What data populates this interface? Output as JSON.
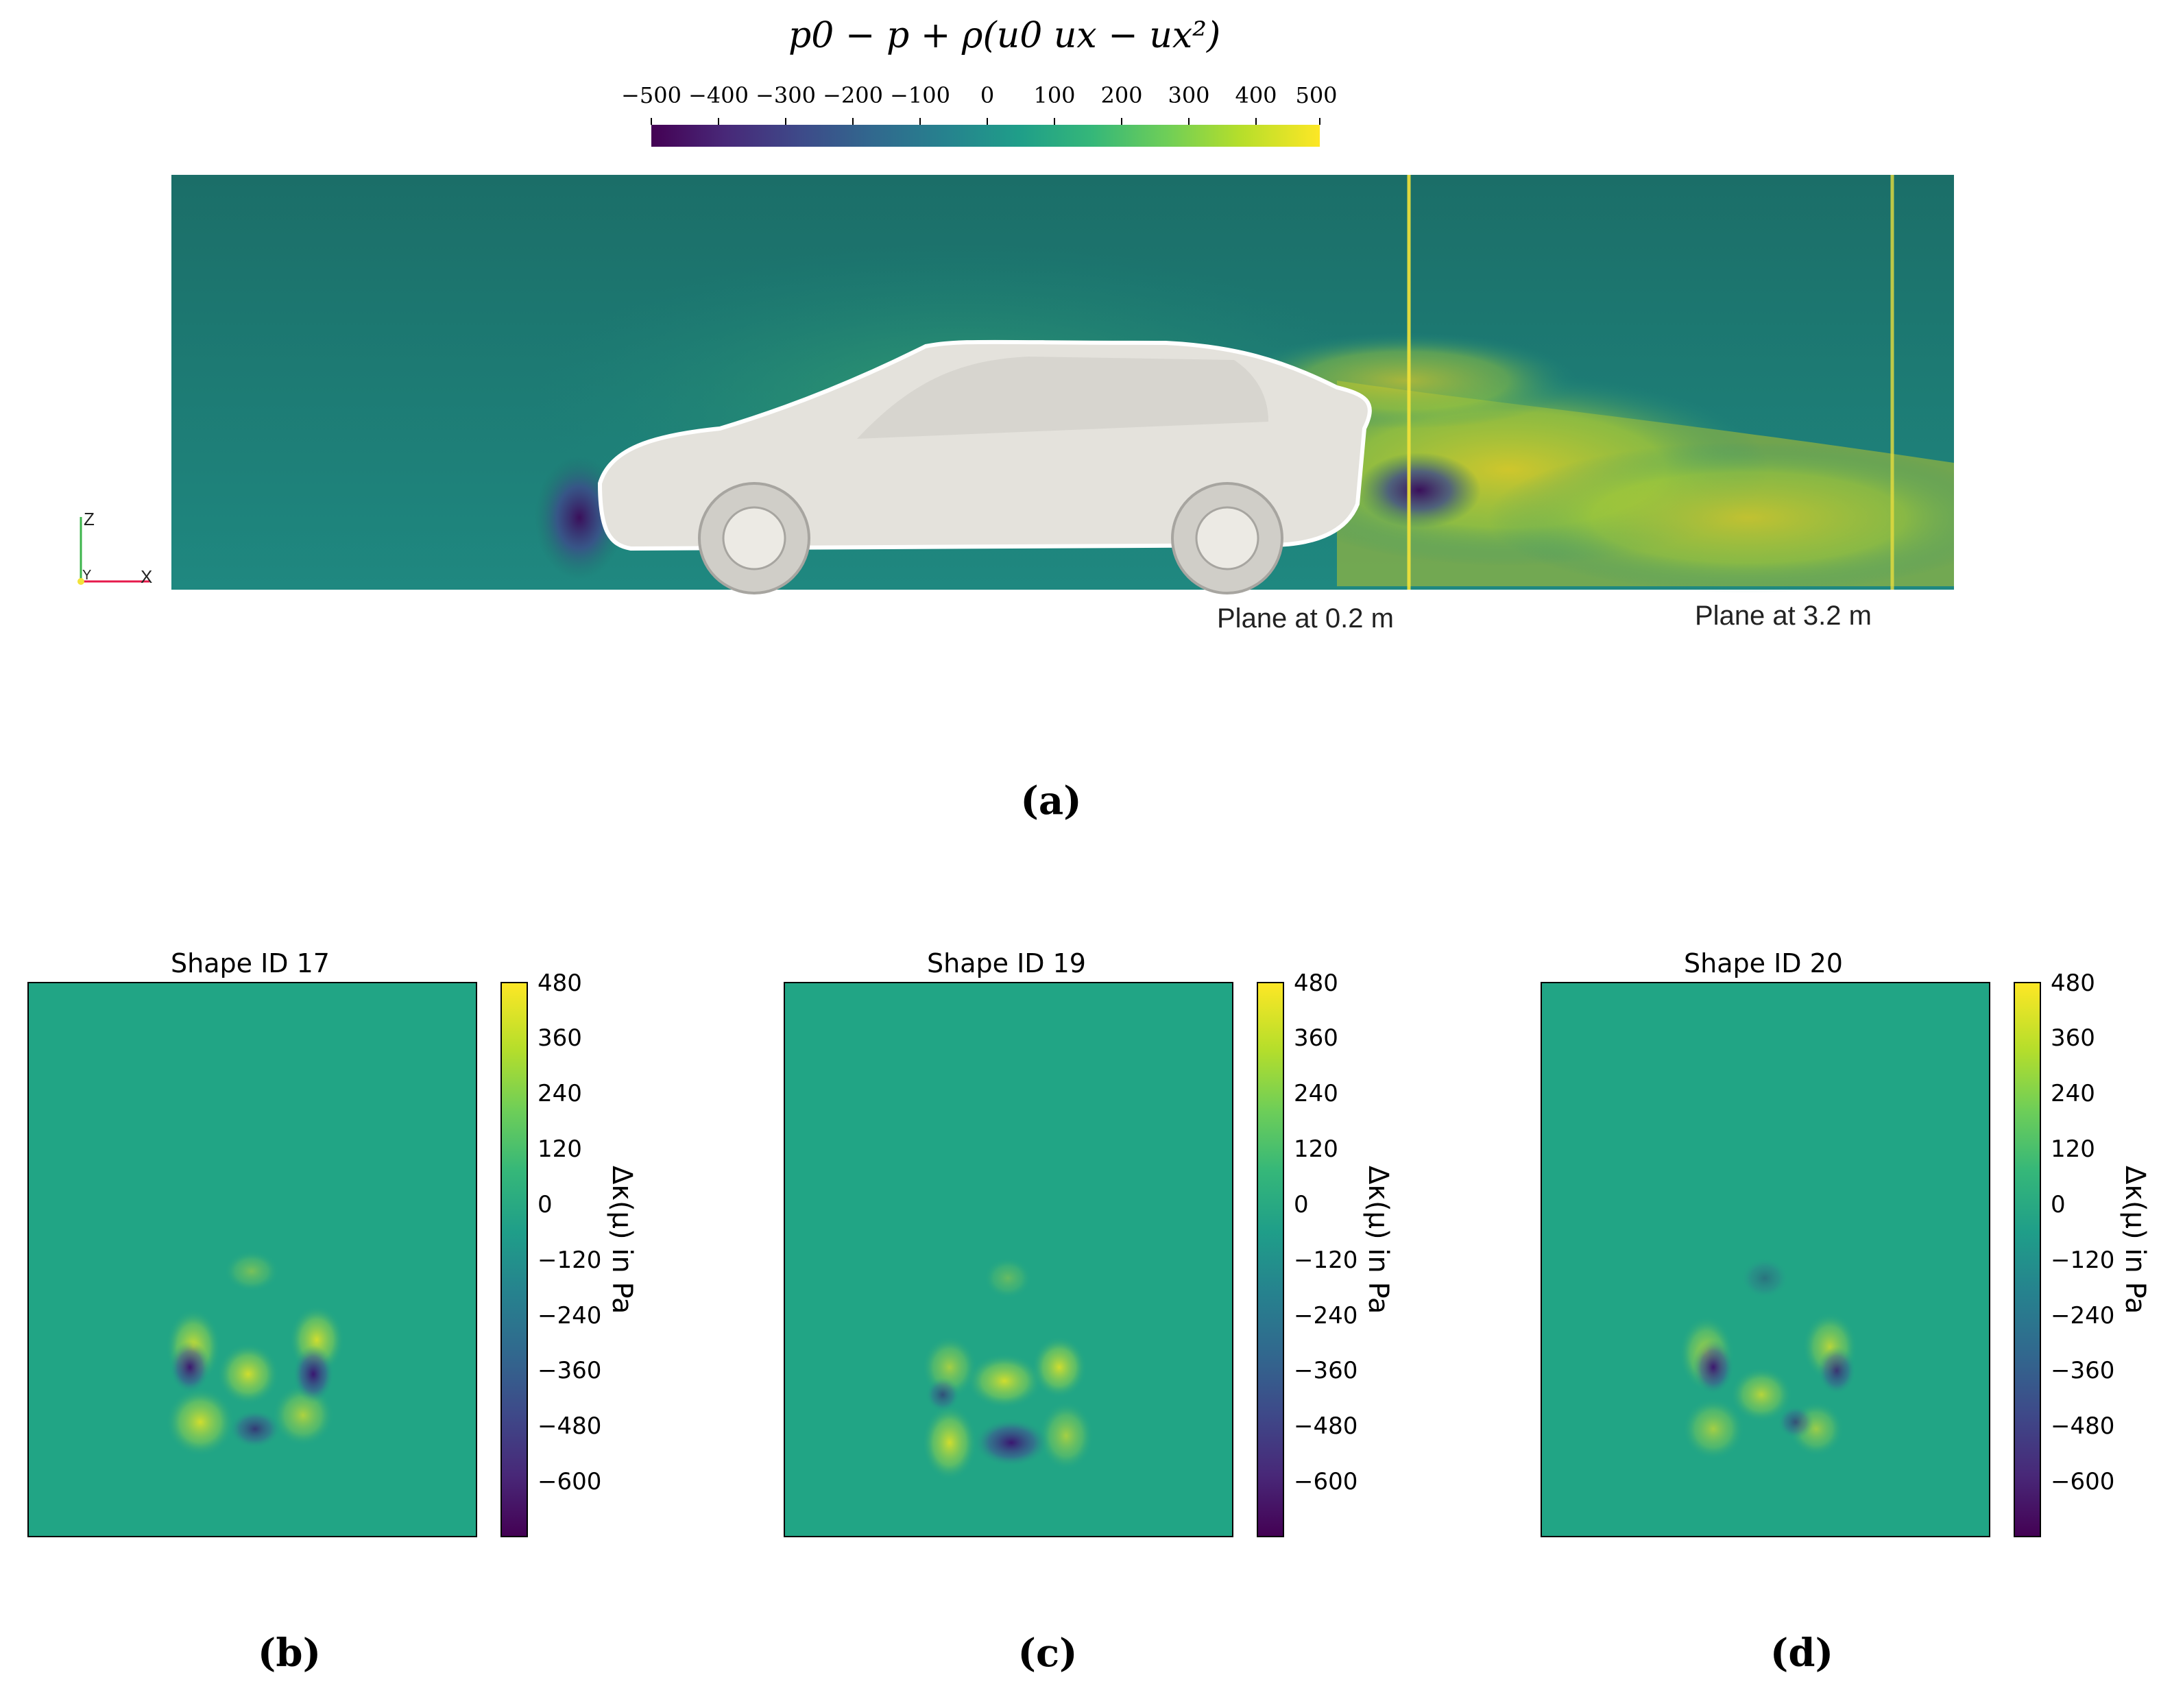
{
  "colors": {
    "viridis": [
      "#440154",
      "#482878",
      "#3e4989",
      "#31688e",
      "#26828e",
      "#1f9e89",
      "#35b779",
      "#6ece58",
      "#b5de2b",
      "#fde725"
    ],
    "field_bg": "#1e6e68",
    "car": "#e4e2dc"
  },
  "chart_data": [
    {
      "id": "a",
      "type": "heatmap",
      "title": "p0 − p + ρ(u0 ux − ux²)",
      "colorbar": {
        "ticks": [
          -500,
          -400,
          -300,
          -200,
          -100,
          0,
          100,
          200,
          300,
          400,
          500
        ],
        "tick_labels": [
          "−500",
          "−400",
          "−300",
          "−200",
          "−100",
          "0",
          "100",
          "200",
          "300",
          "400",
          "500"
        ],
        "range": [
          -500,
          500
        ]
      },
      "annotations": [
        "Plane at 0.2 m",
        "Plane at 3.2 m"
      ],
      "axes_triad": [
        "Z",
        "Y",
        "X"
      ],
      "caption": "(a)"
    },
    {
      "id": "b",
      "type": "heatmap",
      "title": "Shape ID 17",
      "colorbar": {
        "label": "Δκ(μ) in Pa",
        "ticks": [
          480,
          360,
          240,
          120,
          0,
          -120,
          -240,
          -360,
          -480,
          -600
        ],
        "tick_labels": [
          "480",
          "360",
          "240",
          "120",
          "0",
          "−120",
          "−240",
          "−360",
          "−480",
          "−600"
        ],
        "range": [
          -700,
          500
        ]
      },
      "caption": "(b)"
    },
    {
      "id": "c",
      "type": "heatmap",
      "title": "Shape ID 19",
      "colorbar": {
        "label": "Δκ(μ) in Pa",
        "ticks": [
          480,
          360,
          240,
          120,
          0,
          -120,
          -240,
          -360,
          -480,
          -600
        ],
        "tick_labels": [
          "480",
          "360",
          "240",
          "120",
          "0",
          "−120",
          "−240",
          "−360",
          "−480",
          "−600"
        ],
        "range": [
          -700,
          500
        ]
      },
      "caption": "(c)"
    },
    {
      "id": "d",
      "type": "heatmap",
      "title": "Shape ID 20",
      "colorbar": {
        "label": "Δκ(μ) in Pa",
        "ticks": [
          480,
          360,
          240,
          120,
          0,
          -120,
          -240,
          -360,
          -480,
          -600
        ],
        "tick_labels": [
          "480",
          "360",
          "240",
          "120",
          "0",
          "−120",
          "−240",
          "−360",
          "−480",
          "−600"
        ],
        "range": [
          -700,
          500
        ]
      },
      "caption": "(d)"
    }
  ]
}
